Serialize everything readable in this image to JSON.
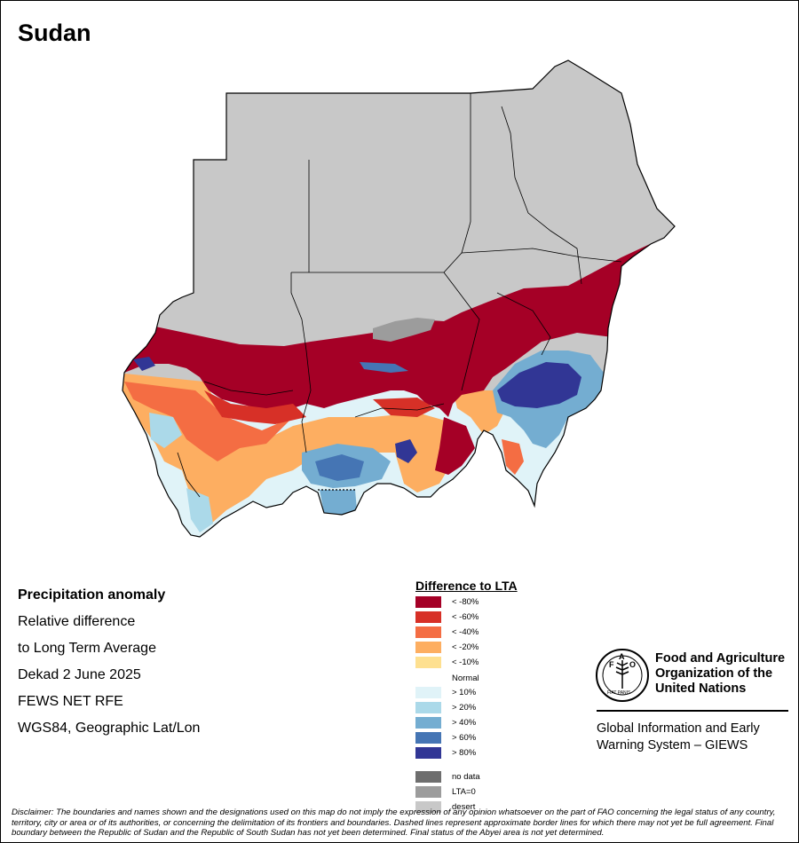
{
  "title": "Sudan",
  "info": {
    "heading": "Precipitation anomaly",
    "lines": [
      "Relative difference",
      "to Long Term Average",
      "Dekad 2 June 2025",
      "FEWS NET RFE",
      "WGS84, Geographic Lat/Lon"
    ]
  },
  "legend": {
    "title": "Difference to LTA",
    "items": [
      {
        "label": "< -80%",
        "color": "#A50026"
      },
      {
        "label": "< -60%",
        "color": "#D73027"
      },
      {
        "label": "< -40%",
        "color": "#F46D43"
      },
      {
        "label": "< -20%",
        "color": "#FDAE61"
      },
      {
        "label": "< -10%",
        "color": "#FEE090"
      },
      {
        "label": "Normal",
        "color": "#FFFFFF"
      },
      {
        "label": "> 10%",
        "color": "#E0F3F8"
      },
      {
        "label": "> 20%",
        "color": "#ABD9E9"
      },
      {
        "label": "> 40%",
        "color": "#74ADD1"
      },
      {
        "label": "> 60%",
        "color": "#4575B4"
      },
      {
        "label": "> 80%",
        "color": "#313695"
      },
      {
        "label": "no data",
        "color": "#6E6E6E"
      },
      {
        "label": "LTA=0",
        "color": "#9C9C9C"
      },
      {
        "label": "desert",
        "color": "#C8C8C8"
      }
    ]
  },
  "fao": {
    "emblem_text": "FAO",
    "motto": "FIAT PANIS",
    "name": "Food and Agriculture Organization of the United Nations",
    "program": "Global Information and Early Warning System – GIEWS"
  },
  "disclaimer": "Disclaimer: The boundaries and names shown and the designations used on this map do not imply the expression of any opinion whatsoever on the part of FAO concerning the legal status of any country, territory, city or area or of its authorities, or concerning the delimitation of its frontiers and boundaries. Dashed lines represent approximate border lines for which there may not yet be full agreement.  Final boundary between the Republic of Sudan and the Republic of South Sudan has not yet been determined. Final status of the Abyei area is not yet determined."
}
